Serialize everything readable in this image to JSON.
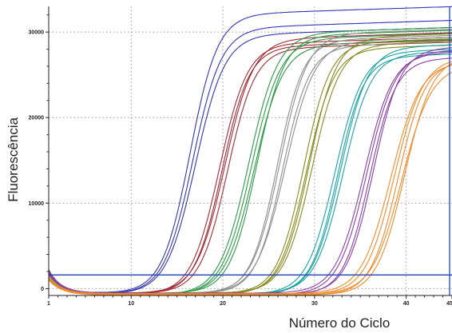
{
  "chart_data": {
    "type": "line",
    "title": "",
    "xlabel": "Número do Ciclo",
    "ylabel": "Fluorescência",
    "xlim": [
      1,
      45
    ],
    "ylim": [
      -800,
      33000
    ],
    "x_ticks": [
      1,
      10,
      20,
      30,
      40,
      45
    ],
    "x_tick_labels": [
      "1",
      "10",
      "20",
      "30",
      "40",
      "45"
    ],
    "y_ticks": [
      0,
      10000,
      20000,
      30000
    ],
    "y_tick_labels": [
      "0",
      "10000",
      "20000",
      "30000"
    ],
    "grid": "dotted vertical at x ticks, dotted horizontal at y ticks",
    "legend": "none",
    "threshold": {
      "value": 1600,
      "color": "#2244bb"
    },
    "series": [
      {
        "color": "#3333b5",
        "ct": [
          14.6,
          14.9,
          15.2
        ],
        "plateau": [
          32500,
          31000,
          30200
        ]
      },
      {
        "color": "#a02a34",
        "ct": [
          17.8,
          18.1,
          18.4,
          18.7
        ],
        "plateau": [
          29200,
          28800,
          29600,
          28500
        ]
      },
      {
        "color": "#2a9a45",
        "ct": [
          21.0,
          21.3,
          21.6,
          21.9
        ],
        "plateau": [
          30500,
          29800,
          29000,
          30000
        ]
      },
      {
        "color": "#8e8e8e",
        "ct": [
          24.1,
          24.4,
          24.7,
          25.0
        ],
        "plateau": [
          29500,
          30200,
          28800,
          29300
        ]
      },
      {
        "color": "#868a1e",
        "ct": [
          27.0,
          27.3,
          27.6,
          27.9
        ],
        "plateau": [
          29200,
          28600,
          29800,
          28900
        ]
      },
      {
        "color": "#1aa3a3",
        "ct": [
          30.4,
          30.7,
          31.0,
          31.3
        ],
        "plateau": [
          28200,
          27600,
          28800,
          27900
        ]
      },
      {
        "color": "#8a3fa6",
        "ct": [
          33.6,
          33.9,
          34.2,
          34.6
        ],
        "plateau": [
          27900,
          28300,
          27400,
          28600
        ]
      },
      {
        "color": "#f28a28",
        "ct": [
          36.5,
          36.9,
          37.3,
          37.7,
          38.0
        ],
        "plateau": [
          26900,
          27500,
          27200,
          26600,
          27800
        ]
      }
    ]
  }
}
